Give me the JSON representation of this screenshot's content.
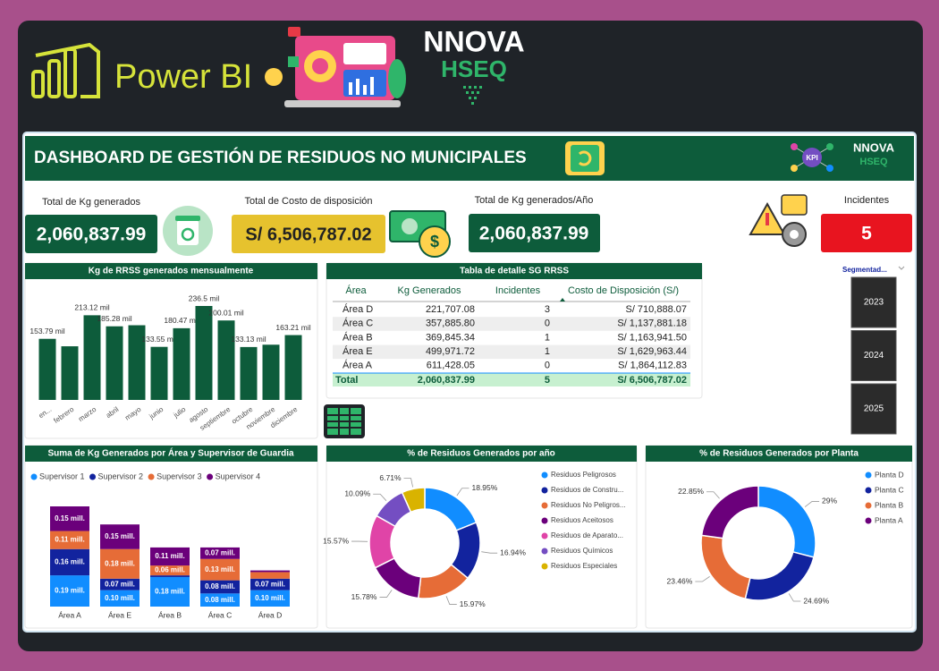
{
  "header": {
    "brand": "Power BI",
    "logo_top": "NNOVA",
    "logo_bottom": "HSEQ"
  },
  "dashboard": {
    "title": "DASHBOARD DE GESTIÓN DE RESIDUOS NO MUNICIPALES",
    "kpi_icon": "KPI"
  },
  "kpis": [
    {
      "label": "Total de Kg generados",
      "value": "2,060,837.99"
    },
    {
      "label": "Total de Costo de disposición",
      "value": "S/ 6,506,787.02"
    },
    {
      "label": "Total de Kg generados/Año",
      "value": "2,060,837.99"
    },
    {
      "label": "Incidentes",
      "value": "5"
    }
  ],
  "table": {
    "title": "Tabla de detalle SG RRSS",
    "columns": [
      "Área",
      "Kg Generados",
      "Incidentes",
      "Costo de Disposición (S/)"
    ],
    "rows": [
      [
        "Área D",
        "221,707.08",
        "3",
        "S/ 710,888.07"
      ],
      [
        "Área C",
        "357,885.80",
        "0",
        "S/ 1,137,881.18"
      ],
      [
        "Área B",
        "369,845.34",
        "1",
        "S/ 1,163,941.50"
      ],
      [
        "Área E",
        "499,971.72",
        "1",
        "S/ 1,629,963.44"
      ],
      [
        "Área A",
        "611,428.05",
        "0",
        "S/ 1,864,112.83"
      ]
    ],
    "total": [
      "Total",
      "2,060,837.99",
      "5",
      "S/ 6,506,787.02"
    ]
  },
  "slicer": {
    "title": "Segmentad...",
    "items": [
      "2023",
      "2024",
      "2025"
    ]
  },
  "chart_data": [
    {
      "type": "bar",
      "title": "Kg de RRSS generados mensualmente",
      "categories": [
        "en...",
        "febrero",
        "marzo",
        "abril",
        "mayo",
        "junio",
        "julio",
        "agosto",
        "septiembre",
        "octubre",
        "noviembre",
        "diciembre"
      ],
      "values": [
        153.79,
        135,
        213.12,
        185.28,
        188,
        133.55,
        180.47,
        236.5,
        200.01,
        133.13,
        139,
        163.21
      ],
      "value_labels": [
        "153.79 mil",
        null,
        "213.12 mil",
        "185.28 mil",
        null,
        "133.55 mil",
        "180.47 mil",
        "236.5 mil",
        "200.01 mil",
        "133.13 mil",
        null,
        "163.21 mil"
      ],
      "color": "#0d5c3b"
    },
    {
      "type": "stacked_bar",
      "title": "Suma de Kg Generados por Área y Supervisor de Guardia",
      "categories": [
        "Área A",
        "Área E",
        "Área B",
        "Área C",
        "Área D"
      ],
      "series": [
        {
          "name": "Supervisor 1",
          "color": "#118dff",
          "values": [
            0.19,
            0.1,
            0.18,
            0.08,
            0.1
          ],
          "value_labels": [
            "0.19 mill.",
            "0.10 mill.",
            "0.18 mill.",
            "0.08 mill.",
            "0.10 mill."
          ]
        },
        {
          "name": "Supervisor 2",
          "color": "#12239e",
          "values": [
            0.16,
            0.07,
            0.01,
            0.08,
            0.07
          ],
          "value_labels": [
            "0.16 mill.",
            "0.07 mill.",
            null,
            "0.08 mill.",
            "0.07 mill."
          ]
        },
        {
          "name": "Supervisor 3",
          "color": "#e66c37",
          "values": [
            0.11,
            0.18,
            0.06,
            0.13,
            0.04
          ],
          "value_labels": [
            "0.11 mill.",
            "0.18 mill.",
            "0.06 mill.",
            "0.13 mill.",
            null
          ]
        },
        {
          "name": "Supervisor 4",
          "color": "#6b007b",
          "values": [
            0.15,
            0.15,
            0.11,
            0.07,
            0.01
          ],
          "value_labels": [
            "0.15 mill.",
            "0.15 mill.",
            "0.11 mill.",
            "0.07 mill.",
            null
          ]
        }
      ]
    },
    {
      "type": "donut",
      "title": "% de Residuos Generados por año",
      "categories": [
        "Residuos Peligrosos",
        "Residuos de Constru...",
        "Residuos No Peligros...",
        "Residuos Aceitosos",
        "Residuos de Aparato...",
        "Residuos Químicos",
        "Residuos Especiales"
      ],
      "values": [
        18.95,
        16.94,
        15.97,
        15.78,
        15.57,
        10.09,
        6.71
      ],
      "value_labels": [
        "18.95%",
        "16.94%",
        "15.97%",
        "15.78%",
        "15.57%",
        "10.09%",
        "6.71%"
      ],
      "colors": [
        "#118dff",
        "#12239e",
        "#e66c37",
        "#6b007b",
        "#e044a7",
        "#744ec2",
        "#d9b300"
      ]
    },
    {
      "type": "donut",
      "title": "% de Residuos Generados por Planta",
      "categories": [
        "Planta D",
        "Planta C",
        "Planta B",
        "Planta A"
      ],
      "values": [
        29,
        24.69,
        23.46,
        22.85
      ],
      "value_labels": [
        "29%",
        "24.69%",
        "23.46%",
        "22.85%"
      ],
      "colors": [
        "#118dff",
        "#12239e",
        "#e66c37",
        "#6b007b"
      ]
    }
  ]
}
